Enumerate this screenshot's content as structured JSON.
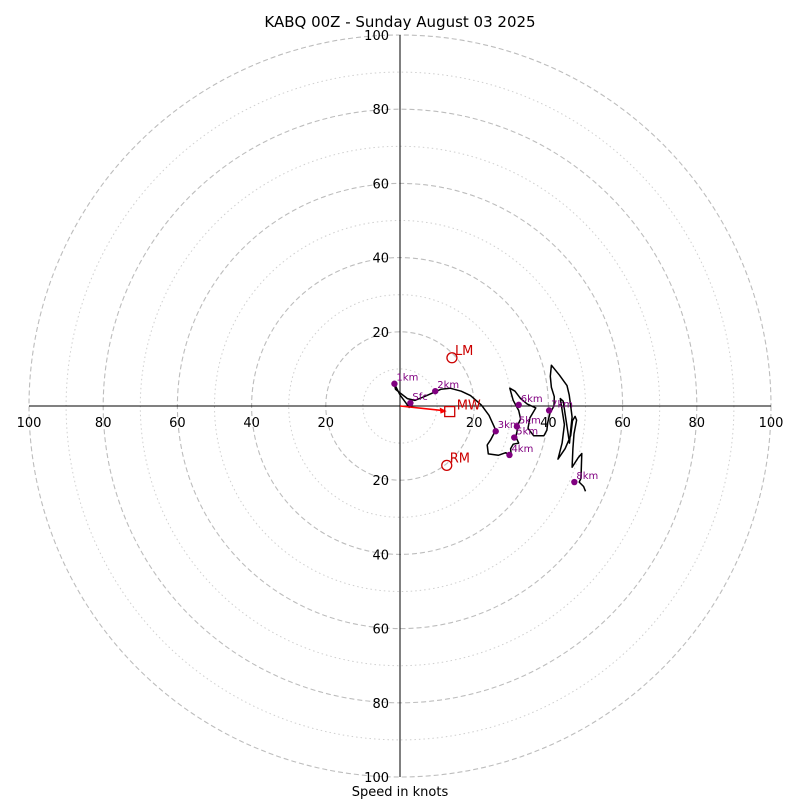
{
  "chart_data": {
    "type": "hodograph",
    "title": "KABQ 00Z - Sunday August 03 2025",
    "xlabel": "Speed in knots",
    "range": [
      -100,
      100
    ],
    "ring_major": [
      20,
      40,
      60,
      80,
      100
    ],
    "ring_minor": [
      10,
      30,
      50,
      70,
      90
    ],
    "tick_labels": {
      "x": [
        {
          "v": -100,
          "t": "100"
        },
        {
          "v": -80,
          "t": "80"
        },
        {
          "v": -60,
          "t": "60"
        },
        {
          "v": -40,
          "t": "40"
        },
        {
          "v": -20,
          "t": "20"
        },
        {
          "v": 20,
          "t": "20"
        },
        {
          "v": 40,
          "t": "40"
        },
        {
          "v": 60,
          "t": "60"
        },
        {
          "v": 80,
          "t": "80"
        },
        {
          "v": 100,
          "t": "100"
        }
      ],
      "y": [
        {
          "v": 100,
          "t": "100"
        },
        {
          "v": 80,
          "t": "80"
        },
        {
          "v": 60,
          "t": "60"
        },
        {
          "v": 40,
          "t": "40"
        },
        {
          "v": 20,
          "t": "20"
        },
        {
          "v": -20,
          "t": "20"
        },
        {
          "v": -40,
          "t": "40"
        },
        {
          "v": -60,
          "t": "60"
        },
        {
          "v": -80,
          "t": "80"
        },
        {
          "v": -100,
          "t": "100"
        }
      ]
    },
    "trace": [
      [
        2.6,
        -0.5
      ],
      [
        0,
        3
      ],
      [
        -1.5,
        6
      ],
      [
        -1.2,
        4.5
      ],
      [
        2,
        2
      ],
      [
        4,
        1.5
      ],
      [
        6.5,
        2.5
      ],
      [
        9.2,
        3.7
      ],
      [
        11,
        4.5
      ],
      [
        13.5,
        4.8
      ],
      [
        16.5,
        4
      ],
      [
        19,
        2.8
      ],
      [
        20.5,
        1.5
      ],
      [
        22,
        0.2
      ],
      [
        24,
        -2.5
      ],
      [
        25.8,
        -6.5
      ],
      [
        24.5,
        -9
      ],
      [
        23.5,
        -10.5
      ],
      [
        23.8,
        -12.9
      ],
      [
        26.5,
        -13.3
      ],
      [
        28.5,
        -12.6
      ],
      [
        30,
        -13.5
      ],
      [
        29.8,
        -11.5
      ],
      [
        30.5,
        -10.3
      ],
      [
        32,
        -10
      ],
      [
        31.2,
        -8.3
      ],
      [
        31.5,
        -7
      ],
      [
        31.8,
        -5
      ],
      [
        32.5,
        -3.5
      ],
      [
        32,
        -1.2
      ],
      [
        30.5,
        1.5
      ],
      [
        29.6,
        4.8
      ],
      [
        31,
        4
      ],
      [
        32.5,
        2
      ],
      [
        34.3,
        0.5
      ],
      [
        36.6,
        -0.5
      ],
      [
        35,
        -3.2
      ],
      [
        34.5,
        -6
      ],
      [
        36,
        -8
      ],
      [
        38.8,
        -8
      ],
      [
        39.6,
        -6.5
      ],
      [
        39.8,
        -4.5
      ],
      [
        40.4,
        -2
      ],
      [
        41.5,
        0
      ],
      [
        41.6,
        2.5
      ],
      [
        40.8,
        5
      ],
      [
        40.5,
        8
      ],
      [
        40.8,
        11
      ],
      [
        43,
        8.3
      ],
      [
        45,
        5.5
      ],
      [
        45.6,
        3
      ],
      [
        46,
        0
      ],
      [
        46.4,
        -3
      ],
      [
        46,
        -6.5
      ],
      [
        45.7,
        -10
      ],
      [
        44,
        1.3
      ],
      [
        43.2,
        2
      ],
      [
        44.3,
        -5
      ],
      [
        43.7,
        -10
      ],
      [
        42.6,
        -14.3
      ],
      [
        44.5,
        -11.5
      ],
      [
        46,
        -8
      ],
      [
        46.5,
        -4
      ],
      [
        47.2,
        -2.8
      ],
      [
        47.6,
        -3.8
      ],
      [
        46.9,
        -7.5
      ],
      [
        46.6,
        -11.5
      ],
      [
        46.4,
        -16.5
      ],
      [
        48,
        -14
      ],
      [
        49,
        -12.8
      ],
      [
        48.9,
        -16
      ],
      [
        48.8,
        -19.5
      ],
      [
        48.3,
        -20.5
      ],
      [
        49.5,
        -21.7
      ],
      [
        50,
        -23
      ]
    ],
    "altitude_points": [
      {
        "label": "Sfc",
        "u": 2.8,
        "v": 0.8
      },
      {
        "label": "1km",
        "u": -1.5,
        "v": 6
      },
      {
        "label": "2km",
        "u": 9.5,
        "v": 4
      },
      {
        "label": "3km",
        "u": 25.8,
        "v": -6.8
      },
      {
        "label": "4km",
        "u": 29.5,
        "v": -13.2
      },
      {
        "label": "5km",
        "u": 31.5,
        "v": -5.5
      },
      {
        "label": "5km",
        "u": 30.8,
        "v": -8.5
      },
      {
        "label": "6km",
        "u": 32,
        "v": 0.3
      },
      {
        "label": "7km",
        "u": 40.2,
        "v": -1.2
      },
      {
        "label": "8km",
        "u": 47,
        "v": -20.5
      }
    ],
    "mean_wind": {
      "label": "MW",
      "u": 13.4,
      "v": -1.5
    },
    "left_mover": {
      "label": "LM",
      "u": 14,
      "v": 13
    },
    "right_mover": {
      "label": "RM",
      "u": 12.6,
      "v": -16
    },
    "colors": {
      "trace": "#000000",
      "points": "#800080",
      "storm_motion": "#cc0000",
      "mean_wind_arrow": "#ff0000",
      "grid": "#bdbdbd"
    }
  }
}
